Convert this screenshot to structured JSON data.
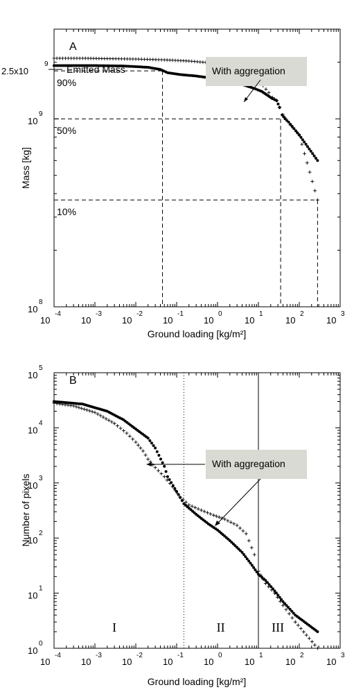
{
  "chart_data": [
    {
      "type": "scatter",
      "panel_label": "A",
      "xlabel": "Ground loading [kg/m²]",
      "ylabel": "Mass [kg]",
      "x_scale": "log",
      "y_scale": "log",
      "xlim": [
        0.0001,
        1000
      ],
      "ylim": [
        100000000,
        3000000000
      ],
      "x_ticks": [
        {
          "base": "10",
          "exp": "-4",
          "value": 0.0001
        },
        {
          "base": "10",
          "exp": "-3",
          "value": 0.001
        },
        {
          "base": "10",
          "exp": "-2",
          "value": 0.01
        },
        {
          "base": "10",
          "exp": "-1",
          "value": 0.1
        },
        {
          "base": "10",
          "exp": "0",
          "value": 1
        },
        {
          "base": "10",
          "exp": "1",
          "value": 10
        },
        {
          "base": "10",
          "exp": "2",
          "value": 100
        },
        {
          "base": "10",
          "exp": "3",
          "value": 1000
        }
      ],
      "y_ticks": [
        {
          "base": "10",
          "exp": "8",
          "value": 100000000
        },
        {
          "base": "10",
          "exp": "9",
          "value": 1000000000
        }
      ],
      "emitted_mass": {
        "base": "2.5x10",
        "exp": "9",
        "value": 2500000000,
        "label": "Emitted Mass"
      },
      "callout": "With aggregation",
      "percent_lines": [
        {
          "label": "90%",
          "y": 1800000000,
          "x": 0.045
        },
        {
          "label": "50%",
          "y": 1000000000,
          "x": 35
        },
        {
          "label": "10%",
          "y": 370000000,
          "x": 280
        }
      ],
      "series": [
        {
          "marker": "plus",
          "points": [
            [
              0.0001,
              2100000000
            ],
            [
              0.0005,
              2100000000
            ],
            [
              0.002,
              2090000000
            ],
            [
              0.01,
              2080000000
            ],
            [
              0.05,
              2060000000
            ],
            [
              0.2,
              2030000000
            ],
            [
              0.6,
              1990000000
            ],
            [
              1.5,
              1930000000
            ],
            [
              3,
              1850000000
            ],
            [
              5,
              1770000000
            ],
            [
              7,
              1700000000
            ],
            [
              10,
              1600000000
            ],
            [
              13,
              1500000000
            ],
            [
              18,
              1380000000
            ],
            [
              22,
              1300000000
            ],
            [
              28,
              1250000000
            ],
            [
              33,
              1150000000
            ],
            [
              40,
              1050000000
            ],
            [
              60,
              930000000
            ],
            [
              100,
              820000000
            ],
            [
              280,
              370000000
            ]
          ]
        },
        {
          "marker": "dot",
          "points": [
            [
              0.0001,
              1920000000
            ],
            [
              0.001,
              1920000000
            ],
            [
              0.005,
              1910000000
            ],
            [
              0.02,
              1880000000
            ],
            [
              0.04,
              1830000000
            ],
            [
              0.06,
              1760000000
            ],
            [
              0.12,
              1720000000
            ],
            [
              0.3,
              1690000000
            ],
            [
              0.8,
              1640000000
            ],
            [
              1.5,
              1600000000
            ],
            [
              3,
              1550000000
            ],
            [
              5,
              1500000000
            ],
            [
              8,
              1450000000
            ],
            [
              12,
              1400000000
            ],
            [
              17,
              1330000000
            ],
            [
              22,
              1280000000
            ],
            [
              28,
              1250000000
            ],
            [
              33,
              1150000000
            ],
            [
              38,
              1050000000
            ],
            [
              45,
              1000000000
            ],
            [
              55,
              960000000
            ],
            [
              100,
              820000000
            ],
            [
              280,
              600000000
            ]
          ]
        }
      ]
    },
    {
      "type": "scatter",
      "panel_label": "B",
      "xlabel": "Ground loading [kg/m²]",
      "ylabel": "Number of pixels",
      "x_scale": "log",
      "y_scale": "log",
      "xlim": [
        0.0001,
        1000
      ],
      "ylim": [
        1,
        100000
      ],
      "x_ticks": [
        {
          "base": "10",
          "exp": "-4",
          "value": 0.0001
        },
        {
          "base": "10",
          "exp": "-3",
          "value": 0.001
        },
        {
          "base": "10",
          "exp": "-2",
          "value": 0.01
        },
        {
          "base": "10",
          "exp": "-1",
          "value": 0.1
        },
        {
          "base": "10",
          "exp": "0",
          "value": 1
        },
        {
          "base": "10",
          "exp": "1",
          "value": 10
        },
        {
          "base": "10",
          "exp": "2",
          "value": 100
        },
        {
          "base": "10",
          "exp": "3",
          "value": 1000
        }
      ],
      "y_ticks": [
        {
          "base": "10",
          "exp": "0",
          "value": 1
        },
        {
          "base": "10",
          "exp": "1",
          "value": 10
        },
        {
          "base": "10",
          "exp": "2",
          "value": 100
        },
        {
          "base": "10",
          "exp": "3",
          "value": 1000
        },
        {
          "base": "10",
          "exp": "4",
          "value": 10000
        },
        {
          "base": "10",
          "exp": "5",
          "value": 100000
        }
      ],
      "callout": "With aggregation",
      "vlines": [
        {
          "x": 0.15,
          "style": "dotted"
        },
        {
          "x": 10,
          "style": "solid"
        }
      ],
      "regions": [
        {
          "label": "I",
          "x": 0.003
        },
        {
          "label": "II",
          "x": 1.2
        },
        {
          "label": "III",
          "x": 30
        }
      ],
      "series": [
        {
          "marker": "plus",
          "points": [
            [
              0.0001,
              28000
            ],
            [
              0.0003,
              25000
            ],
            [
              0.001,
              19000
            ],
            [
              0.003,
              12000
            ],
            [
              0.006,
              8000
            ],
            [
              0.01,
              5500
            ],
            [
              0.015,
              3800
            ],
            [
              0.02,
              2700
            ],
            [
              0.03,
              1900
            ],
            [
              0.05,
              1300
            ],
            [
              0.08,
              850
            ],
            [
              0.12,
              560
            ],
            [
              0.2,
              400
            ],
            [
              0.4,
              320
            ],
            [
              0.8,
              260
            ],
            [
              1.5,
              220
            ],
            [
              3,
              170
            ],
            [
              5,
              120
            ],
            [
              8,
              50
            ],
            [
              10,
              25
            ],
            [
              15,
              15
            ],
            [
              25,
              10
            ],
            [
              40,
              6
            ],
            [
              80,
              3
            ],
            [
              280,
              1
            ]
          ]
        },
        {
          "marker": "dot",
          "points": [
            [
              0.0001,
              30000
            ],
            [
              0.0005,
              27000
            ],
            [
              0.002,
              20000
            ],
            [
              0.005,
              14000
            ],
            [
              0.01,
              9500
            ],
            [
              0.02,
              6500
            ],
            [
              0.03,
              4300
            ],
            [
              0.05,
              2000
            ],
            [
              0.06,
              1300
            ],
            [
              0.1,
              700
            ],
            [
              0.15,
              420
            ],
            [
              0.3,
              270
            ],
            [
              0.6,
              180
            ],
            [
              1,
              140
            ],
            [
              2,
              90
            ],
            [
              4,
              55
            ],
            [
              7,
              32
            ],
            [
              10,
              22
            ],
            [
              15,
              17
            ],
            [
              25,
              11
            ],
            [
              40,
              7
            ],
            [
              80,
              4
            ],
            [
              280,
              2
            ]
          ]
        }
      ]
    }
  ]
}
